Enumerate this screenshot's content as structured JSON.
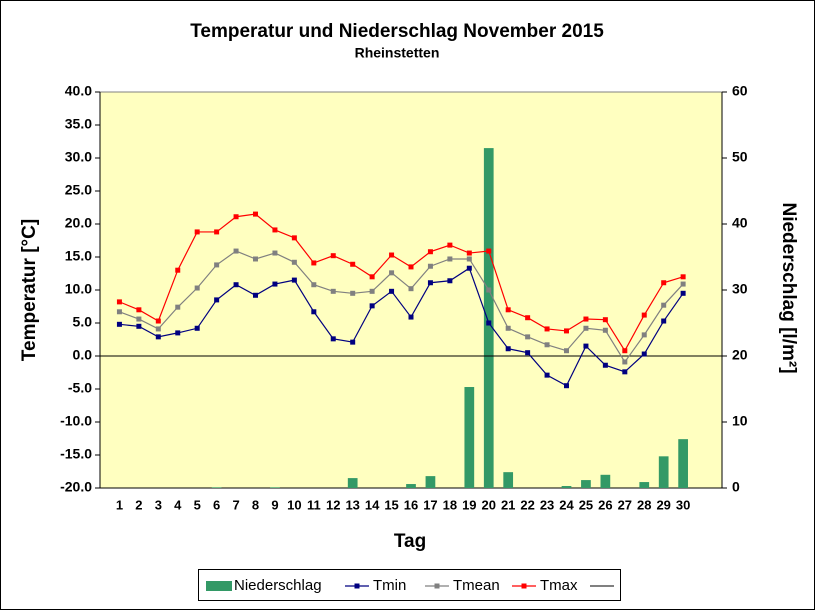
{
  "chart_data": {
    "type": "combo",
    "title": "Temperatur und Niederschlag  November 2015",
    "subtitle": "Rheinstetten",
    "x_label": "Tag",
    "y_label": "Temperatur [°C]",
    "y2_label": "Niederschlag [l/m²]",
    "x": [
      1,
      2,
      3,
      4,
      5,
      6,
      7,
      8,
      9,
      10,
      11,
      12,
      13,
      14,
      15,
      16,
      17,
      18,
      19,
      20,
      21,
      22,
      23,
      24,
      25,
      26,
      27,
      28,
      29,
      30
    ],
    "xlim": [
      0,
      32
    ],
    "xticks": [
      1,
      2,
      3,
      4,
      5,
      6,
      7,
      8,
      9,
      10,
      11,
      12,
      13,
      14,
      15,
      16,
      17,
      18,
      19,
      20,
      21,
      22,
      23,
      24,
      25,
      26,
      27,
      28,
      29,
      30
    ],
    "ylim": [
      -20,
      40
    ],
    "yticks": [
      {
        "value": -20,
        "label": "-20.0"
      },
      {
        "value": -15,
        "label": "-15.0"
      },
      {
        "value": -10,
        "label": "-10.0"
      },
      {
        "value": -5,
        "label": "-5.0"
      },
      {
        "value": 0,
        "label": "0.0"
      },
      {
        "value": 5,
        "label": "5.0"
      },
      {
        "value": 10,
        "label": "10.0"
      },
      {
        "value": 15,
        "label": "15.0"
      },
      {
        "value": 20,
        "label": "20.0"
      },
      {
        "value": 25,
        "label": "25.0"
      },
      {
        "value": 30,
        "label": "30.0"
      },
      {
        "value": 35,
        "label": "35.0"
      },
      {
        "value": 40,
        "label": "40.0"
      }
    ],
    "y2lim": [
      0,
      60
    ],
    "y2ticks": [
      0,
      10,
      20,
      30,
      40,
      50,
      60
    ],
    "background": "#ffffc0",
    "series": [
      {
        "name": "Niederschlag",
        "type": "bar",
        "axis": "y2",
        "color": "#339966",
        "values": [
          0,
          0,
          0,
          0,
          0,
          0.1,
          0,
          0,
          0.1,
          0,
          0,
          0,
          1.5,
          0,
          0,
          0.6,
          1.8,
          0,
          15.3,
          51.5,
          2.4,
          0,
          0,
          0.3,
          1.2,
          2.0,
          0,
          0.9,
          4.8,
          7.4
        ]
      },
      {
        "name": "Tmin",
        "type": "line",
        "color": "#000080",
        "values": [
          4.8,
          4.5,
          2.9,
          3.5,
          4.2,
          8.5,
          10.8,
          9.2,
          10.9,
          11.5,
          6.7,
          2.6,
          2.1,
          7.6,
          9.8,
          5.9,
          11.1,
          11.4,
          13.3,
          5.0,
          1.1,
          0.5,
          -2.9,
          -4.5,
          1.5,
          -1.4,
          -2.4,
          0.3,
          5.3,
          9.5
        ]
      },
      {
        "name": "Tmean",
        "type": "line",
        "color": "#808080",
        "values": [
          6.7,
          5.6,
          4.1,
          7.4,
          10.3,
          13.8,
          15.9,
          14.7,
          15.6,
          14.2,
          10.8,
          9.8,
          9.5,
          9.8,
          12.6,
          10.2,
          13.6,
          14.7,
          14.7,
          10.0,
          4.2,
          2.9,
          1.7,
          0.8,
          4.2,
          3.9,
          -0.9,
          3.2,
          7.7,
          10.9
        ]
      },
      {
        "name": "Tmax",
        "type": "line",
        "color": "#ff0000",
        "values": [
          8.2,
          7.0,
          5.3,
          13.0,
          18.8,
          18.8,
          21.1,
          21.5,
          19.1,
          17.9,
          14.1,
          15.2,
          13.9,
          12.0,
          15.3,
          13.5,
          15.8,
          16.8,
          15.6,
          15.9,
          7.0,
          5.8,
          4.1,
          3.8,
          5.6,
          5.5,
          0.8,
          6.2,
          11.1,
          12.0
        ]
      }
    ]
  }
}
